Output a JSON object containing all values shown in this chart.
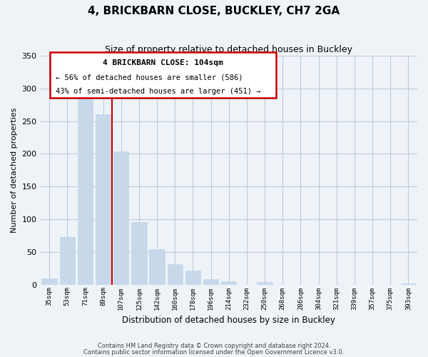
{
  "title": "4, BRICKBARN CLOSE, BUCKLEY, CH7 2GA",
  "subtitle": "Size of property relative to detached houses in Buckley",
  "xlabel": "Distribution of detached houses by size in Buckley",
  "ylabel": "Number of detached properties",
  "bar_labels": [
    "35sqm",
    "53sqm",
    "71sqm",
    "89sqm",
    "107sqm",
    "125sqm",
    "142sqm",
    "160sqm",
    "178sqm",
    "196sqm",
    "214sqm",
    "232sqm",
    "250sqm",
    "268sqm",
    "286sqm",
    "304sqm",
    "321sqm",
    "339sqm",
    "357sqm",
    "375sqm",
    "393sqm"
  ],
  "bar_values": [
    9,
    73,
    286,
    261,
    204,
    96,
    54,
    31,
    21,
    8,
    5,
    0,
    4,
    0,
    0,
    0,
    0,
    0,
    0,
    0,
    2
  ],
  "bar_color": "#c6d8ea",
  "vline_x_index": 4,
  "vline_color": "#cc0000",
  "ylim": [
    0,
    350
  ],
  "yticks": [
    0,
    50,
    100,
    150,
    200,
    250,
    300,
    350
  ],
  "annotation_title": "4 BRICKBARN CLOSE: 104sqm",
  "annotation_line1": "← 56% of detached houses are smaller (586)",
  "annotation_line2": "43% of semi-detached houses are larger (451) →",
  "footer_line1": "Contains HM Land Registry data © Crown copyright and database right 2024.",
  "footer_line2": "Contains public sector information licensed under the Open Government Licence v3.0.",
  "background_color": "#eef3f8",
  "plot_bg_color": "#eef3f8",
  "ann_box_color": "#ffffff",
  "ann_border_color": "#cc0000",
  "grid_color": "#c0ccd8"
}
